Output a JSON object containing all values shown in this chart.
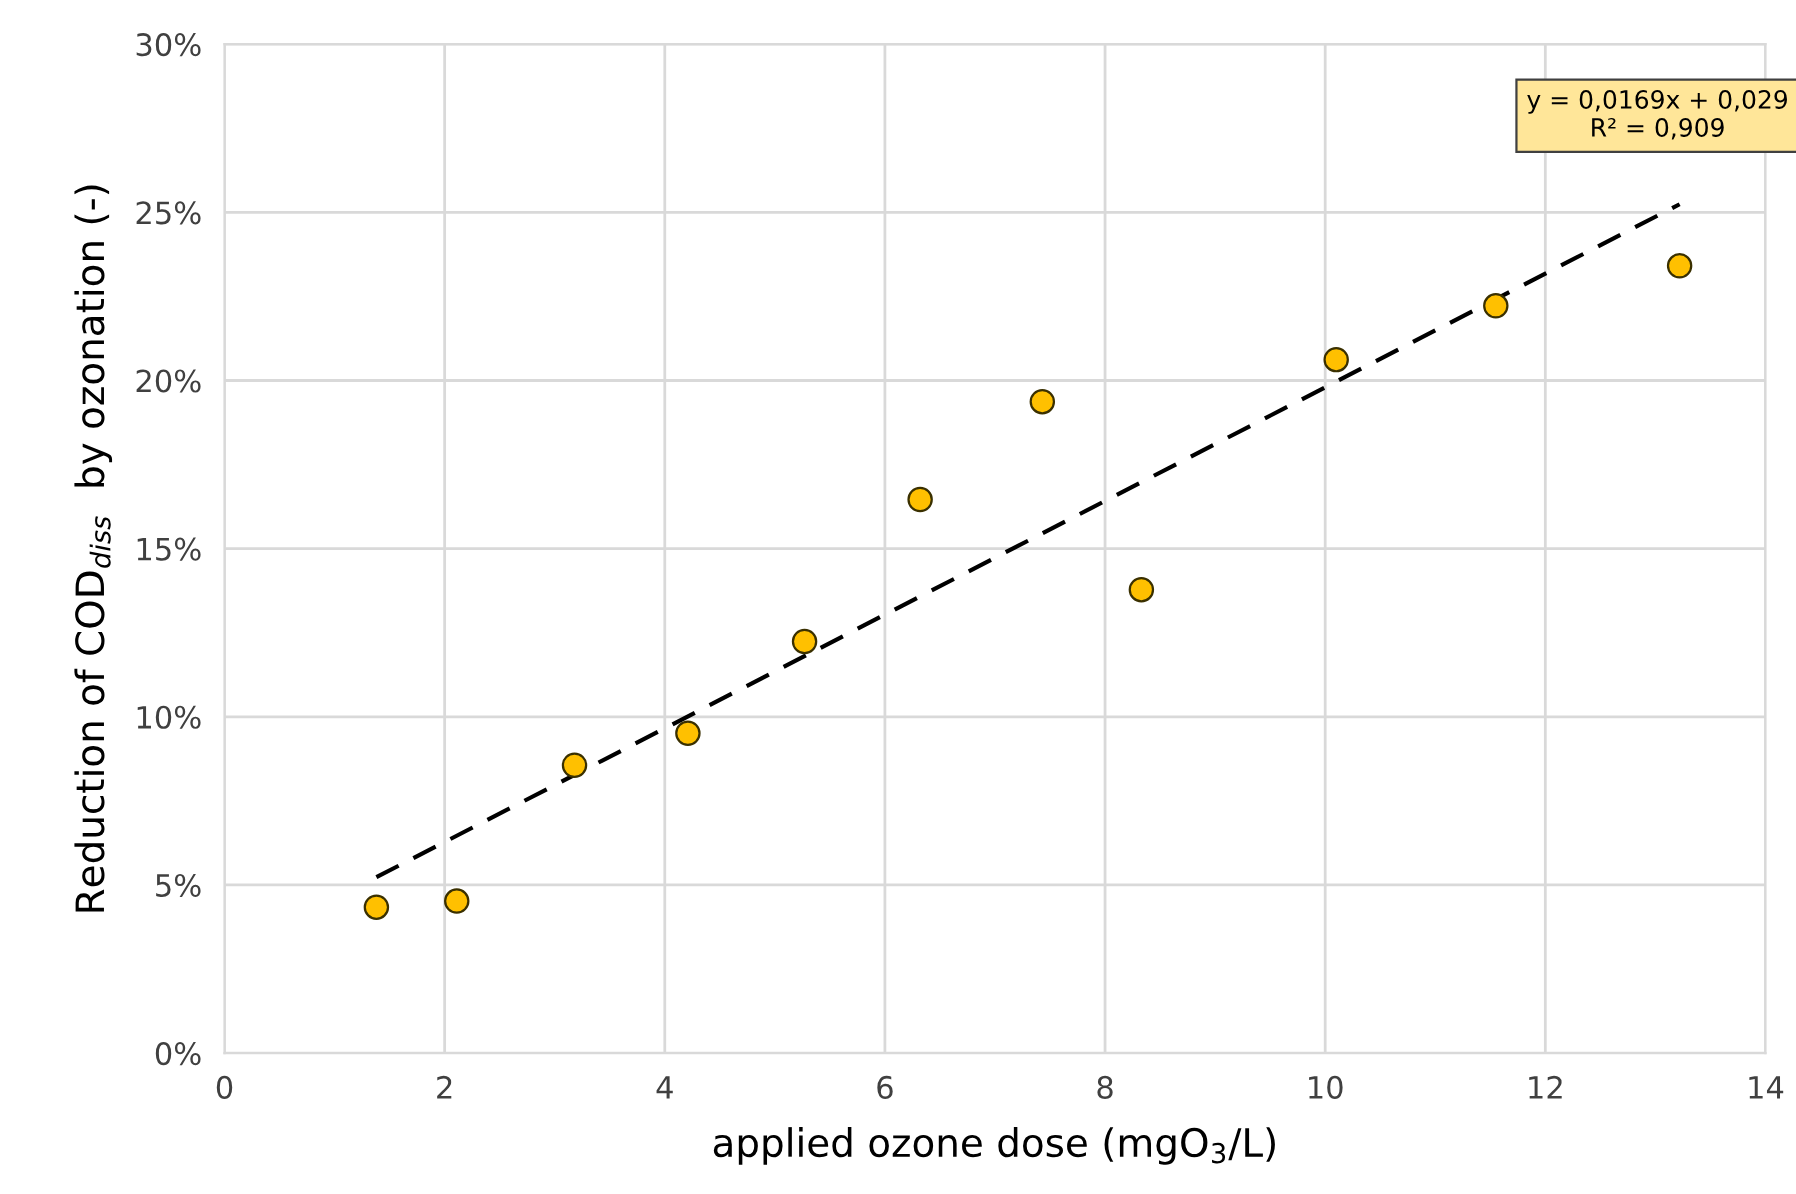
{
  "chart_data": {
    "type": "scatter",
    "xlabel": "applied ozone dose (mgO$_{3}$/L)",
    "ylabel": "Reduction of COD$_{diss}$  by ozonation (-)",
    "xlim": [
      0,
      14
    ],
    "xticks": [
      0,
      2,
      4,
      6,
      8,
      10,
      12,
      14
    ],
    "ylim": [
      0,
      0.3
    ],
    "yticks": [
      {
        "value": 0,
        "label": "0%"
      },
      {
        "value": 0.05,
        "label": "5%"
      },
      {
        "value": 0.1,
        "label": "10%"
      },
      {
        "value": 0.15,
        "label": "15%"
      },
      {
        "value": 0.2,
        "label": "20%"
      },
      {
        "value": 0.25,
        "label": "25%"
      },
      {
        "value": 0.3,
        "label": "30%"
      }
    ],
    "grid": true,
    "marker": "circle",
    "series": [
      {
        "type": "scatter",
        "color": "#ffc000",
        "x": [
          1.38,
          2.11,
          3.18,
          4.21,
          5.27,
          6.32,
          7.43,
          8.33,
          10.1,
          11.55,
          13.22
        ],
        "values": [
          0.0434,
          0.0452,
          0.0856,
          0.0951,
          0.1224,
          0.1646,
          0.1937,
          0.1378,
          0.2062,
          0.2222,
          0.2341
        ]
      },
      {
        "type": "line",
        "color": "#000000",
        "line_style": "dashed",
        "marker": "none",
        "x": [
          1.38,
          13.22
        ],
        "values": [
          0.0523,
          0.2524
        ]
      }
    ],
    "annotations": [
      "y = 0,0169x + 0,029\nR² = 0,909"
    ]
  }
}
